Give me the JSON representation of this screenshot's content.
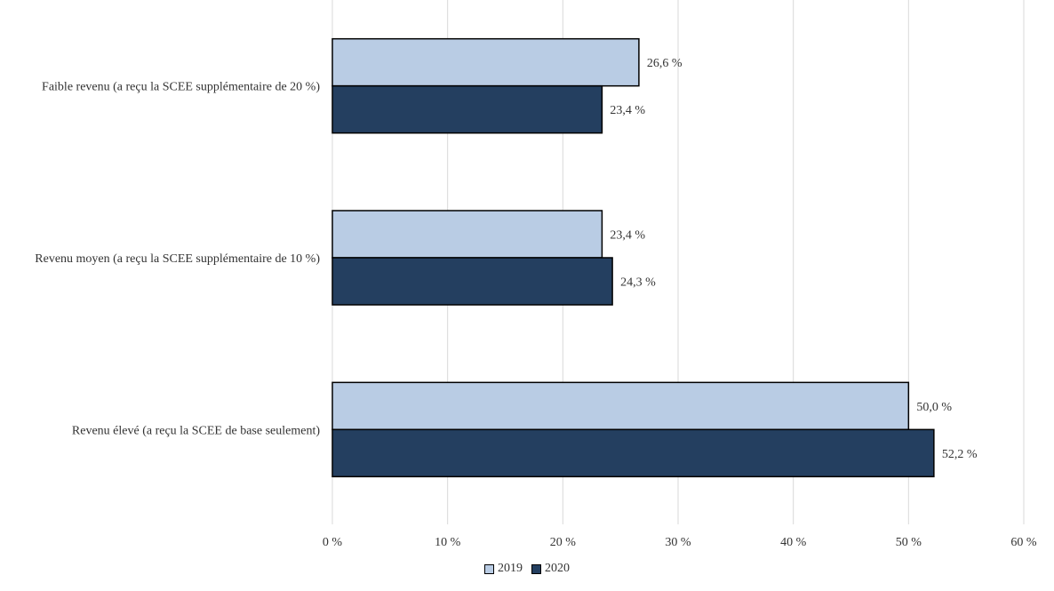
{
  "colors": {
    "series_2019": "#b9cce4",
    "series_2020": "#243f60",
    "bar_outline": "#000000",
    "grid": "#d9d9d9",
    "text": "#333333"
  },
  "chart_data": {
    "type": "bar",
    "orientation": "horizontal",
    "categories": [
      "Faible revenu (a reçu la SCEE supplémentaire de 20 %)",
      "Revenu moyen (a reçu la SCEE supplémentaire de 10 %)",
      "Revenu élevé (a reçu la SCEE de base seulement)"
    ],
    "series": [
      {
        "name": "2019",
        "values": [
          26.6,
          23.4,
          50.0
        ],
        "labels": [
          "26,6 %",
          "23,4 %",
          "50,0 %"
        ]
      },
      {
        "name": "2020",
        "values": [
          23.4,
          24.3,
          52.2
        ],
        "labels": [
          "23,4 %",
          "24,3 %",
          "52,2 %"
        ]
      }
    ],
    "xlim": [
      0,
      60
    ],
    "xticks": [
      0,
      10,
      20,
      30,
      40,
      50,
      60
    ],
    "xtick_labels": [
      "0 %",
      "10 %",
      "20 %",
      "30 %",
      "40 %",
      "50 %",
      "60 %"
    ],
    "title": "",
    "xlabel": "",
    "ylabel": "",
    "grid": "vertical",
    "legend": "bottom-center"
  },
  "legend": {
    "items": [
      {
        "label": "2019"
      },
      {
        "label": "2020"
      }
    ]
  }
}
